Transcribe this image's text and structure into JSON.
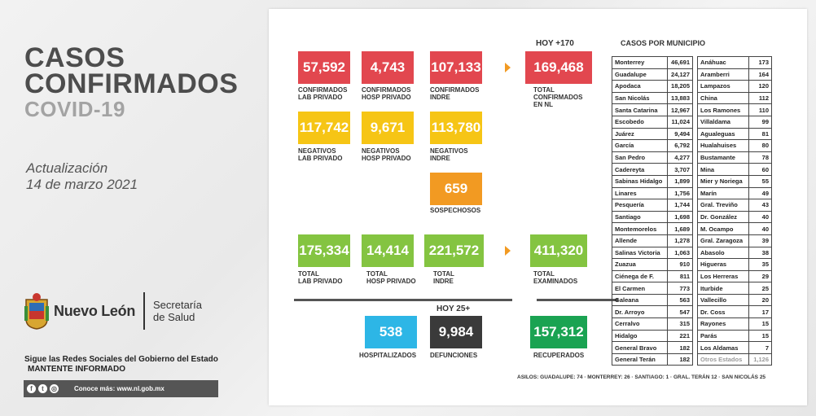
{
  "header": {
    "title_line1": "CASOS",
    "title_line2": "CONFIRMADOS",
    "title_line3": "COVID-19",
    "update_label": "Actualización",
    "update_date": "14 de marzo 2021"
  },
  "branding": {
    "state_name": "Nuevo León",
    "secretariat_line1": "Secretaría",
    "secretariat_line2": "de Salud",
    "social_line1": "Sigue las Redes Sociales del Gobierno del Estado",
    "social_line2": "MANTENTE INFORMADO",
    "more_info": "Conoce más: www.nl.gob.mx",
    "icons": [
      "facebook-icon",
      "twitter-icon",
      "instagram-icon"
    ]
  },
  "colors": {
    "red": "#e2474f",
    "yellow": "#f6c515",
    "orange": "#f29a22",
    "green": "#84c441",
    "cyan": "#2db6e6",
    "dark": "#3a3a3a",
    "dark_green": "#1aa352"
  },
  "stats": {
    "hoy_confirmed": "HOY +170",
    "confirmados_lab_privado": {
      "value": "57,592",
      "label1": "CONFIRMADOS",
      "label2": "LAB PRIVADO"
    },
    "confirmados_hosp_privado": {
      "value": "4,743",
      "label1": "CONFIRMADOS",
      "label2": "HOSP PRIVADO"
    },
    "confirmados_indre": {
      "value": "107,133",
      "label1": "CONFIRMADOS",
      "label2": "INDRE"
    },
    "total_confirmados": {
      "value": "169,468",
      "label1": "TOTAL",
      "label2": "CONFIRMADOS",
      "label3": "EN NL"
    },
    "negativos_lab_privado": {
      "value": "117,742",
      "label1": "NEGATIVOS",
      "label2": "LAB PRIVADO"
    },
    "negativos_hosp_privado": {
      "value": "9,671",
      "label1": "NEGATIVOS",
      "label2": "HOSP PRIVADO"
    },
    "negativos_indre": {
      "value": "113,780",
      "label1": "NEGATIVOS",
      "label2": "INDRE"
    },
    "sospechosos": {
      "value": "659",
      "label1": "SOSPECHOSOS"
    },
    "total_lab_privado": {
      "value": "175,334",
      "label1": "TOTAL",
      "label2": "LAB PRIVADO"
    },
    "total_hosp_privado": {
      "value": "14,414",
      "label1": "TOTAL",
      "label2": "HOSP PRIVADO"
    },
    "total_indre": {
      "value": "221,572",
      "label1": "TOTAL",
      "label2": "INDRE"
    },
    "total_examinados": {
      "value": "411,320",
      "label1": "TOTAL",
      "label2": "EXAMINADOS"
    },
    "hoy_deaths": "HOY 25+",
    "hospitalizados": {
      "value": "538",
      "label1": "HOSPITALIZADOS"
    },
    "defunciones": {
      "value": "9,984",
      "label1": "DEFUNCIONES"
    },
    "recuperados": {
      "value": "157,312",
      "label1": "RECUPERADOS"
    }
  },
  "municipios": {
    "title": "CASOS POR MUNICIPIO",
    "rows": [
      [
        [
          "Monterrey",
          "46,691"
        ],
        [
          "Anáhuac",
          "173"
        ]
      ],
      [
        [
          "Guadalupe",
          "24,127"
        ],
        [
          "Aramberri",
          "164"
        ]
      ],
      [
        [
          "Apodaca",
          "18,205"
        ],
        [
          "Lampazos",
          "120"
        ]
      ],
      [
        [
          "San Nicolás",
          "13,883"
        ],
        [
          "China",
          "112"
        ]
      ],
      [
        [
          "Santa Catarina",
          "12,967"
        ],
        [
          "Los Ramones",
          "110"
        ]
      ],
      [
        [
          "Escobedo",
          "11,024"
        ],
        [
          "Villaldama",
          "99"
        ]
      ],
      [
        [
          "Juárez",
          "9,494"
        ],
        [
          "Agualeguas",
          "81"
        ]
      ],
      [
        [
          "García",
          "6,792"
        ],
        [
          "Hualahuises",
          "80"
        ]
      ],
      [
        [
          "San Pedro",
          "4,277"
        ],
        [
          "Bustamante",
          "78"
        ]
      ],
      [
        [
          "Cadereyta",
          "3,707"
        ],
        [
          "Mina",
          "60"
        ]
      ],
      [
        [
          "Sabinas Hidalgo",
          "1,899"
        ],
        [
          "Mier y Noriega",
          "55"
        ]
      ],
      [
        [
          "Linares",
          "1,756"
        ],
        [
          "Marín",
          "49"
        ]
      ],
      [
        [
          "Pesquería",
          "1,744"
        ],
        [
          "Gral. Treviño",
          "43"
        ]
      ],
      [
        [
          "Santiago",
          "1,698"
        ],
        [
          "Dr. González",
          "40"
        ]
      ],
      [
        [
          "Montemorelos",
          "1,689"
        ],
        [
          "M. Ocampo",
          "40"
        ]
      ],
      [
        [
          "Allende",
          "1,278"
        ],
        [
          "Gral. Zaragoza",
          "39"
        ]
      ],
      [
        [
          "Salinas Victoria",
          "1,063"
        ],
        [
          "Abasolo",
          "38"
        ]
      ],
      [
        [
          "Zuazua",
          "910"
        ],
        [
          "Higueras",
          "35"
        ]
      ],
      [
        [
          "Ciénega de F.",
          "811"
        ],
        [
          "Los Herreras",
          "29"
        ]
      ],
      [
        [
          "El Carmen",
          "773"
        ],
        [
          "Iturbide",
          "25"
        ]
      ],
      [
        [
          "Galeana",
          "563"
        ],
        [
          "Vallecillo",
          "20"
        ]
      ],
      [
        [
          "Dr. Arroyo",
          "547"
        ],
        [
          "Dr. Coss",
          "17"
        ]
      ],
      [
        [
          "Cerralvo",
          "315"
        ],
        [
          "Rayones",
          "15"
        ]
      ],
      [
        [
          "Hidalgo",
          "221"
        ],
        [
          "Parás",
          "15"
        ]
      ],
      [
        [
          "General Bravo",
          "182"
        ],
        [
          "Los Aldamas",
          "7"
        ]
      ],
      [
        [
          "General Terán",
          "182"
        ],
        [
          "Otros Estados",
          "1,126"
        ]
      ]
    ],
    "asilos": "ASILOS: GUADALUPE: 74 · MONTERREY: 26 · SANTIAGO: 1 · GRAL. TERÁN 12 · SAN NICOLÁS 25"
  }
}
